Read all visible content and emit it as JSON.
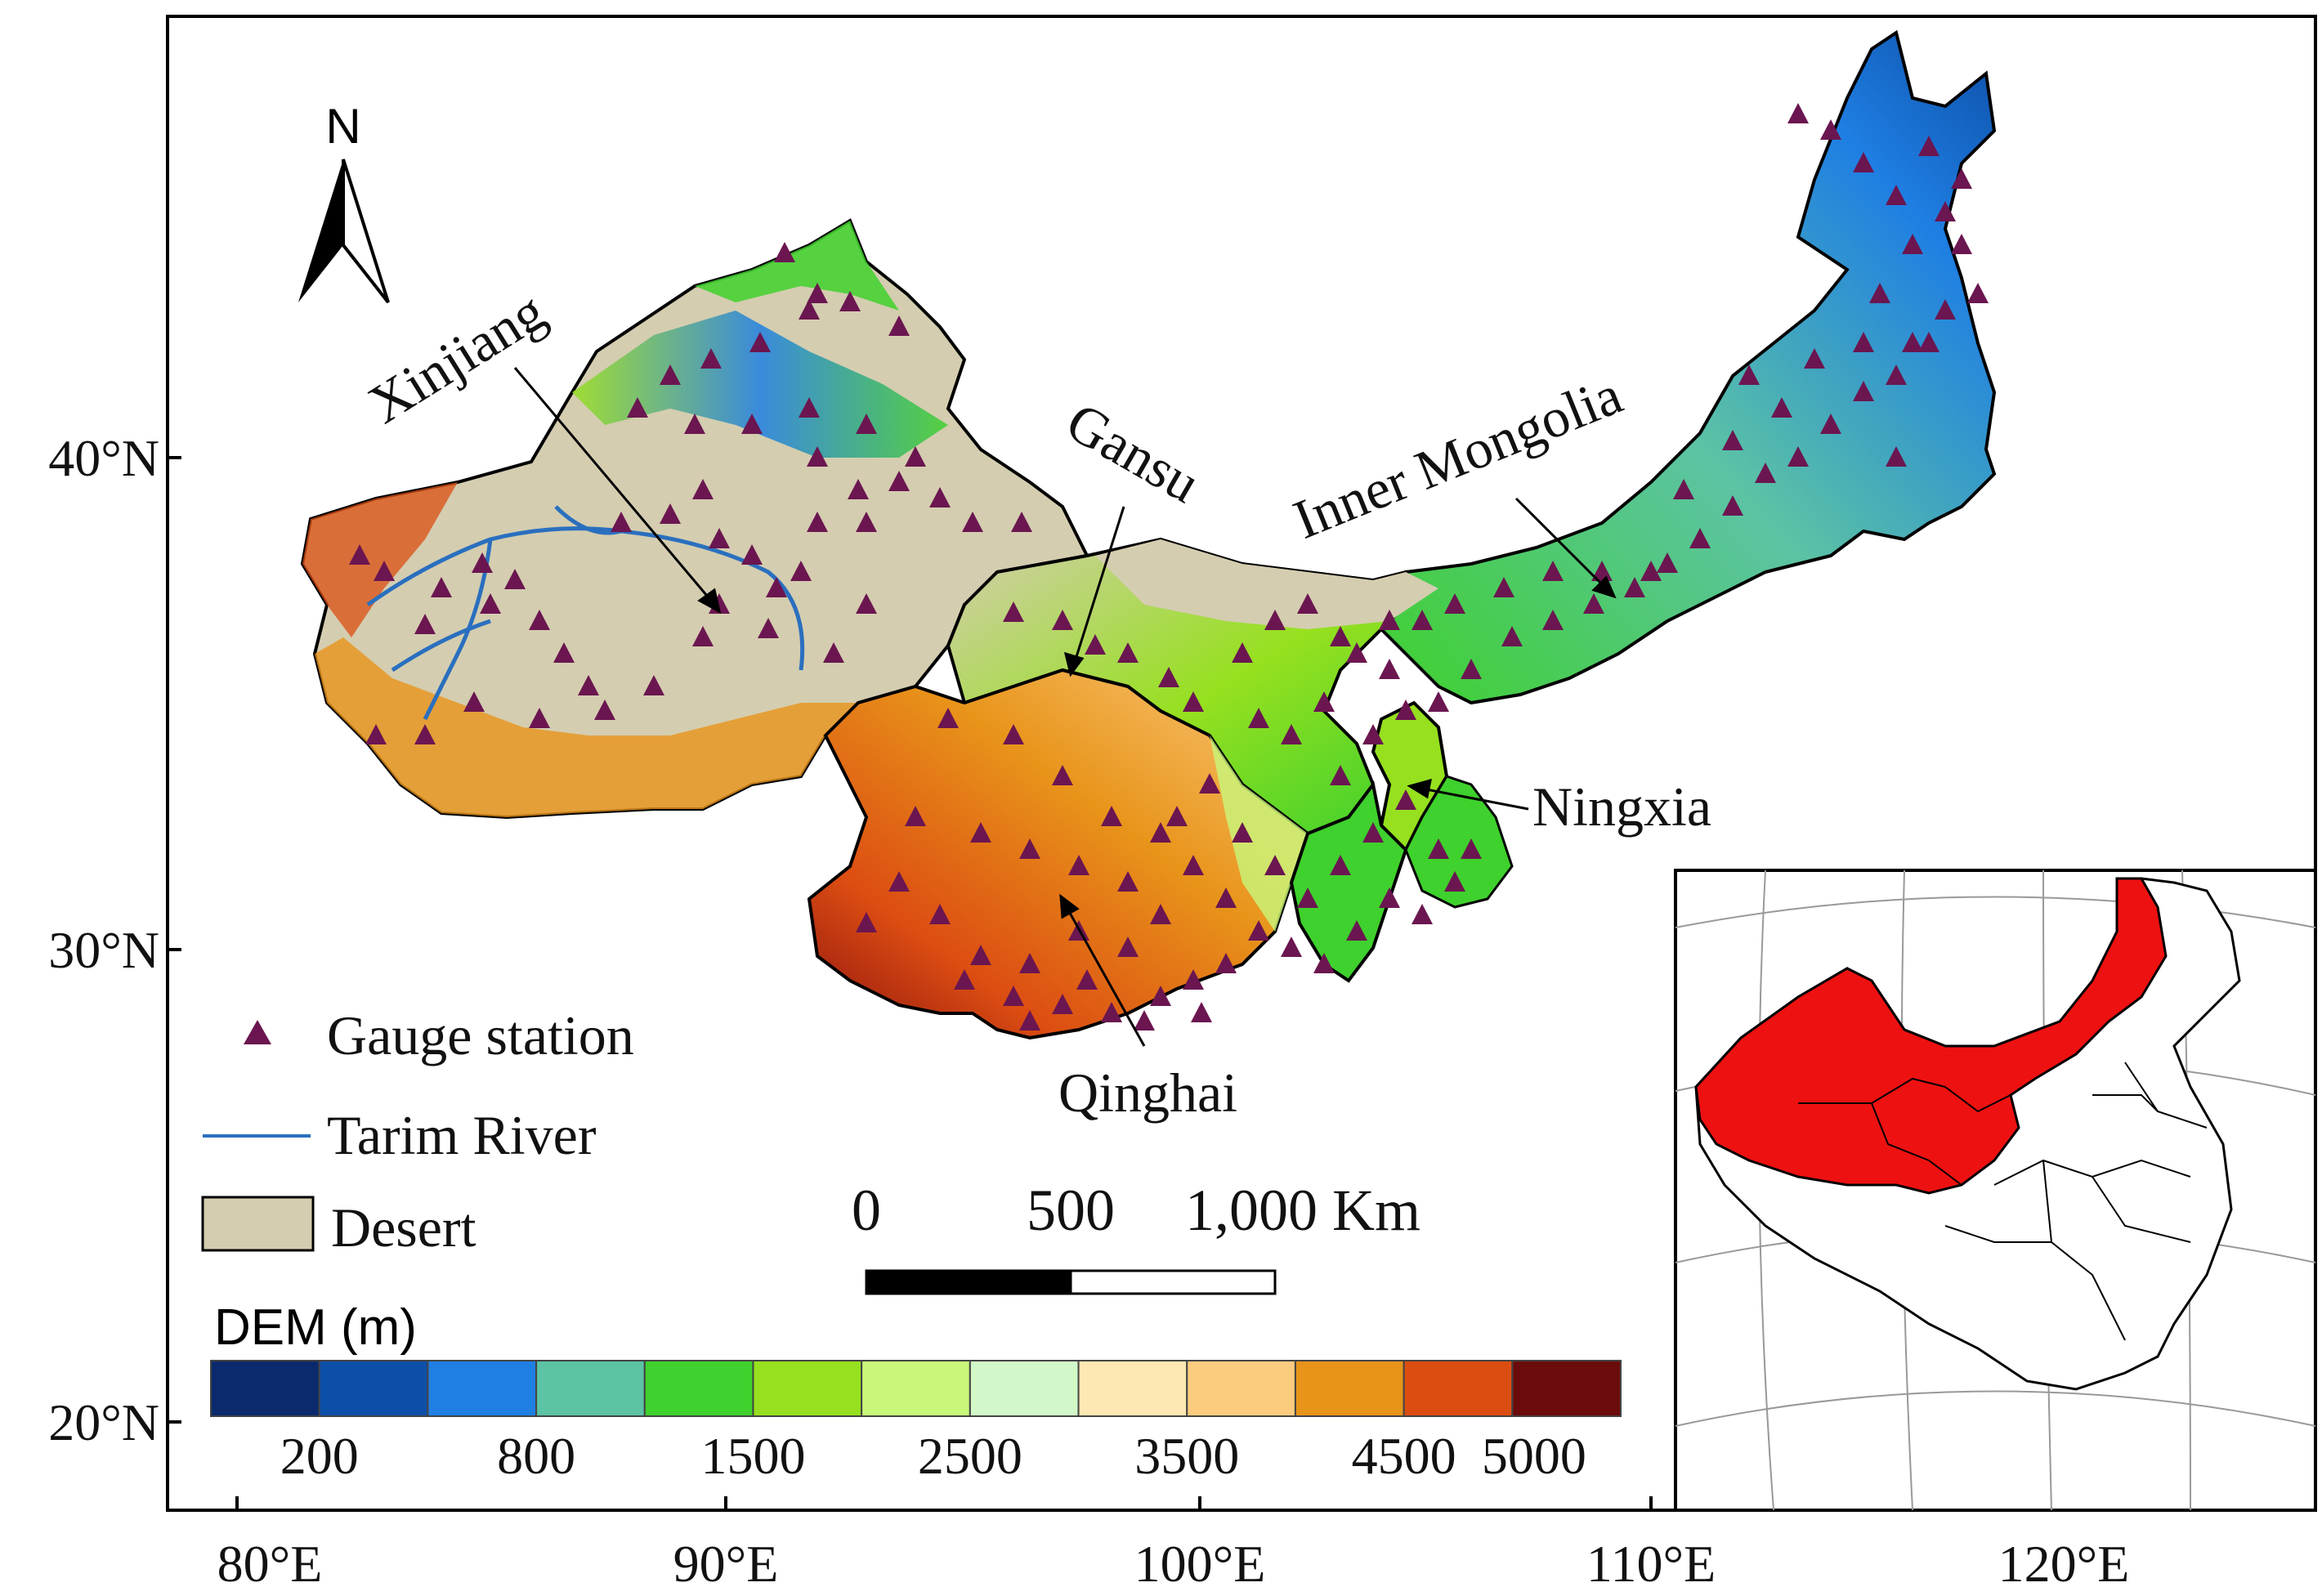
{
  "north_arrow": {
    "label": "N"
  },
  "axes": {
    "lat_ticks": [
      "40°N",
      "30°N",
      "20°N"
    ],
    "lon_ticks": [
      "80°E",
      "90°E",
      "100°E",
      "110°E",
      "120°E"
    ]
  },
  "regions": {
    "xinjiang": "Xinjiang",
    "gansu": "Gansu",
    "inner_mongolia": "Inner Mongolia",
    "ningxia": "Ningxia",
    "qinghai": "Qinghai"
  },
  "legend": {
    "gauge_station": "Gauge station",
    "tarim_river": "Tarim River",
    "desert": "Desert"
  },
  "scale_bar": {
    "labels": [
      "0",
      "500",
      "1,000 Km"
    ]
  },
  "dem": {
    "title": "DEM (m)",
    "tick_labels": [
      "200",
      "800",
      "1500",
      "2500",
      "3500",
      "4500",
      "5000"
    ],
    "colors": [
      "#0b2a6e",
      "#0d4fa8",
      "#1f7fe3",
      "#5cc3a4",
      "#3fd12d",
      "#96e01f",
      "#c8f77a",
      "#d2f7c8",
      "#fde7b2",
      "#fbcb7e",
      "#e8941a",
      "#dc4d12",
      "#6b0b0b"
    ]
  },
  "colors": {
    "desert": "#d4cdb0",
    "river": "#2a6fbf",
    "station": "#6b1650",
    "inset_region": "#ee1111"
  }
}
